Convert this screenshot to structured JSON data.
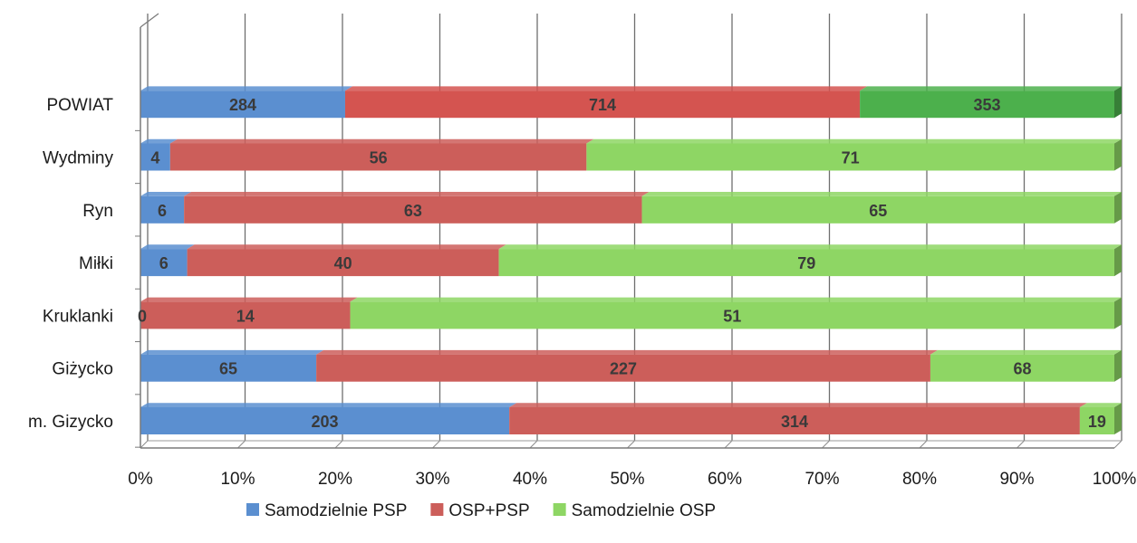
{
  "chart_data": {
    "type": "bar",
    "stacking": "percent",
    "orientation": "horizontal",
    "categories": [
      "m. Gizycko",
      "Giżycko",
      "Kruklanki",
      "Miłki",
      "Ryn",
      "Wydminy",
      "POWIAT"
    ],
    "series": [
      {
        "name": "Samodzielnie PSP",
        "color": "#5b8fd0",
        "values": [
          203,
          65,
          0,
          6,
          6,
          4,
          284
        ]
      },
      {
        "name": "OSP+PSP",
        "color": "#cc5e5a",
        "values": [
          314,
          227,
          14,
          40,
          63,
          56,
          714
        ]
      },
      {
        "name": "Samodzielnie OSP",
        "color": "#8ed664",
        "values": [
          19,
          68,
          51,
          79,
          65,
          71,
          353
        ]
      }
    ],
    "highlight_category": "POWIAT",
    "highlight_colors": [
      "#5b8fd0",
      "#d45450",
      "#4cb04c"
    ],
    "x_ticks": [
      "0%",
      "10%",
      "20%",
      "30%",
      "40%",
      "50%",
      "60%",
      "70%",
      "80%",
      "90%",
      "100%"
    ],
    "xlim": [
      0,
      100
    ],
    "title": "",
    "xlabel": "",
    "ylabel": "",
    "grid": true,
    "legend_position": "bottom"
  }
}
